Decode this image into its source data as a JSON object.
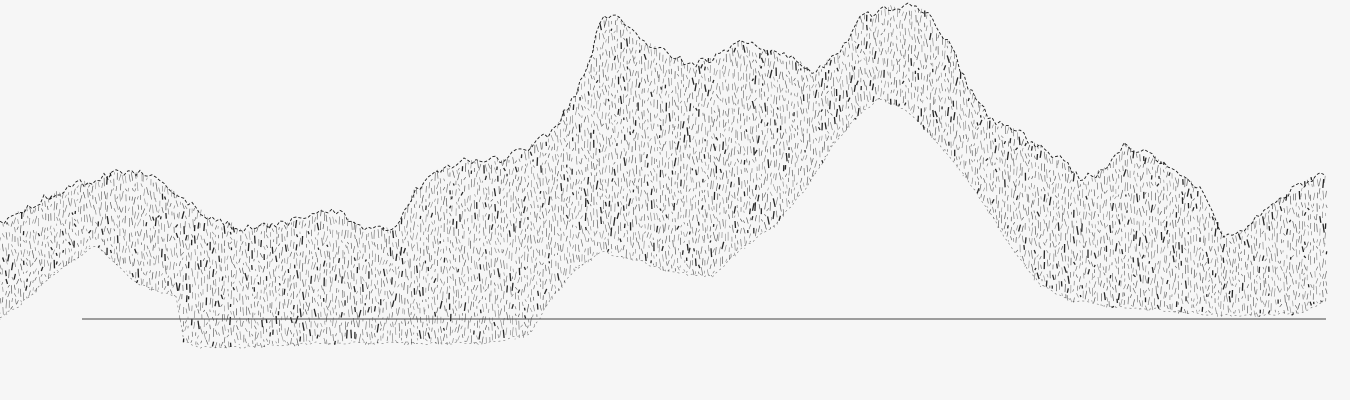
{
  "canvas": {
    "background": "#f6f6f6",
    "ink": "#1a1a1a",
    "baseline_color": "#444444"
  },
  "artwork": {
    "style": "hatched-line-terrain",
    "has_baseline": true
  }
}
